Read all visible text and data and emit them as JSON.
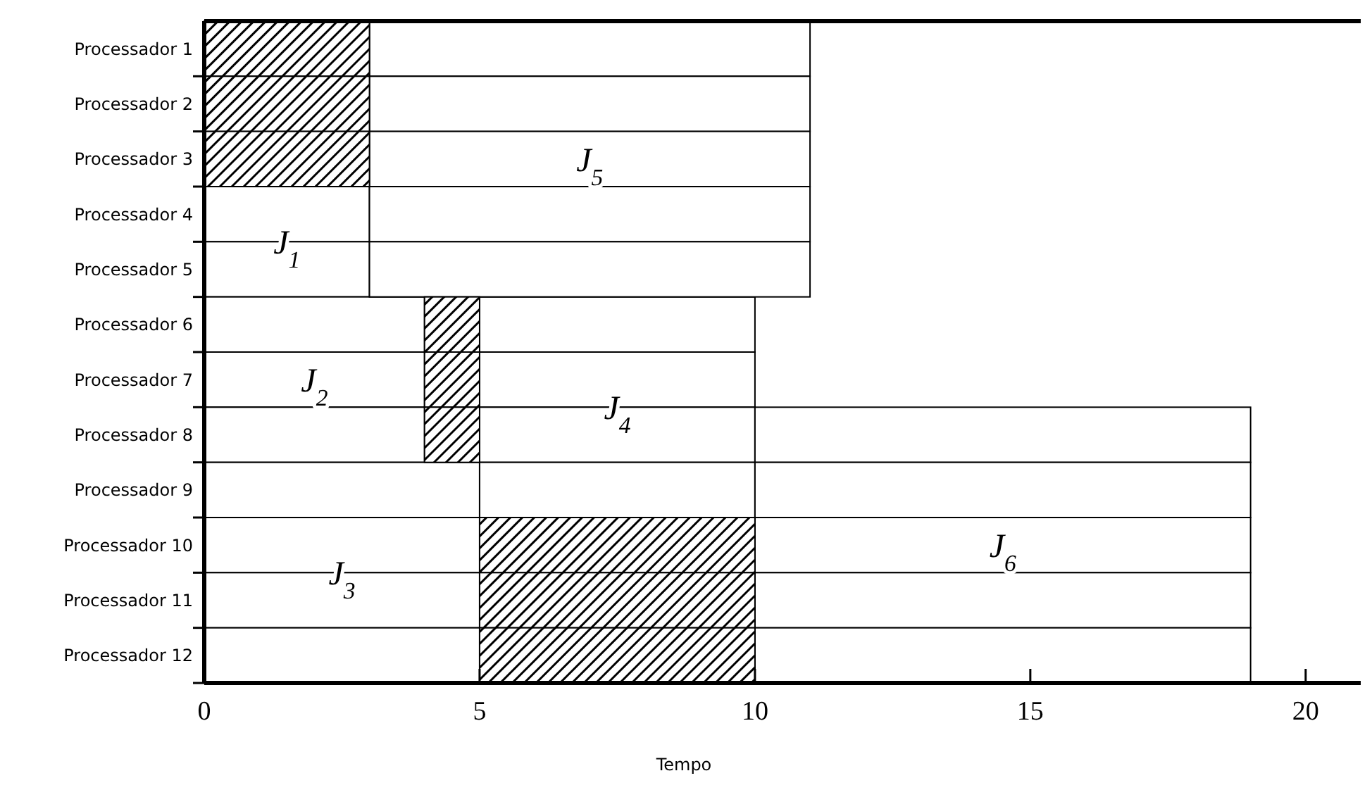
{
  "chart_data": {
    "type": "bar",
    "orientation": "horizontal",
    "xlabel": "Tempo",
    "xlim": [
      0,
      21
    ],
    "xticks": [
      0,
      5,
      10,
      15,
      20
    ],
    "grid": false,
    "categories": [
      "Processador 1",
      "Processador 2",
      "Processador 3",
      "Processador 4",
      "Processador 5",
      "Processador 6",
      "Processador 7",
      "Processador 8",
      "Processador 9",
      "Processador 10",
      "Processador 11",
      "Processador 12"
    ],
    "series": [
      {
        "name": "J$_{1}$",
        "color": "#ffffff",
        "values": [
          null,
          null,
          null,
          3,
          3,
          null,
          null,
          null,
          null,
          null,
          null,
          null
        ],
        "base": [
          null,
          null,
          null,
          0,
          0,
          null,
          null,
          null,
          null,
          null,
          null,
          null
        ]
      },
      {
        "name": "J$_{2}$",
        "color": "#ffffff",
        "values": [
          null,
          null,
          null,
          null,
          null,
          4,
          4,
          4,
          null,
          null,
          null,
          null
        ],
        "base": [
          null,
          null,
          null,
          null,
          null,
          0,
          0,
          0,
          null,
          null,
          null,
          null
        ]
      },
      {
        "name": "J$_{3}$",
        "color": "#ffffff",
        "values": [
          null,
          null,
          null,
          null,
          null,
          null,
          null,
          null,
          5,
          5,
          5,
          5
        ],
        "base": [
          null,
          null,
          null,
          null,
          null,
          null,
          null,
          null,
          0,
          0,
          0,
          0
        ]
      },
      {
        "name": "J$_{4}$",
        "color": "#ffffff",
        "values": [
          null,
          null,
          null,
          null,
          null,
          5,
          5,
          5,
          5,
          null,
          null,
          null
        ],
        "base": [
          null,
          null,
          null,
          null,
          null,
          5,
          5,
          5,
          5,
          null,
          null,
          null
        ]
      },
      {
        "name": "J$_{5}$",
        "color": "#ffffff",
        "values": [
          8,
          8,
          8,
          8,
          8,
          null,
          null,
          null,
          null,
          null,
          null,
          null
        ],
        "base": [
          3,
          3,
          3,
          3,
          3,
          null,
          null,
          null,
          null,
          null,
          null,
          null
        ]
      },
      {
        "name": "J$_{6}$",
        "color": "#ffffff",
        "values": [
          null,
          null,
          null,
          null,
          null,
          null,
          null,
          9,
          9,
          9,
          9,
          9
        ],
        "base": [
          null,
          null,
          null,
          null,
          null,
          null,
          null,
          10,
          10,
          10,
          10,
          10
        ]
      },
      {
        "color": "#000000",
        "values": [
          3,
          3,
          3,
          null,
          null,
          1,
          1,
          1,
          null,
          5,
          5,
          5
        ],
        "base": [
          0,
          0,
          0,
          null,
          null,
          4,
          4,
          4,
          null,
          5,
          5,
          5
        ]
      }
    ]
  }
}
